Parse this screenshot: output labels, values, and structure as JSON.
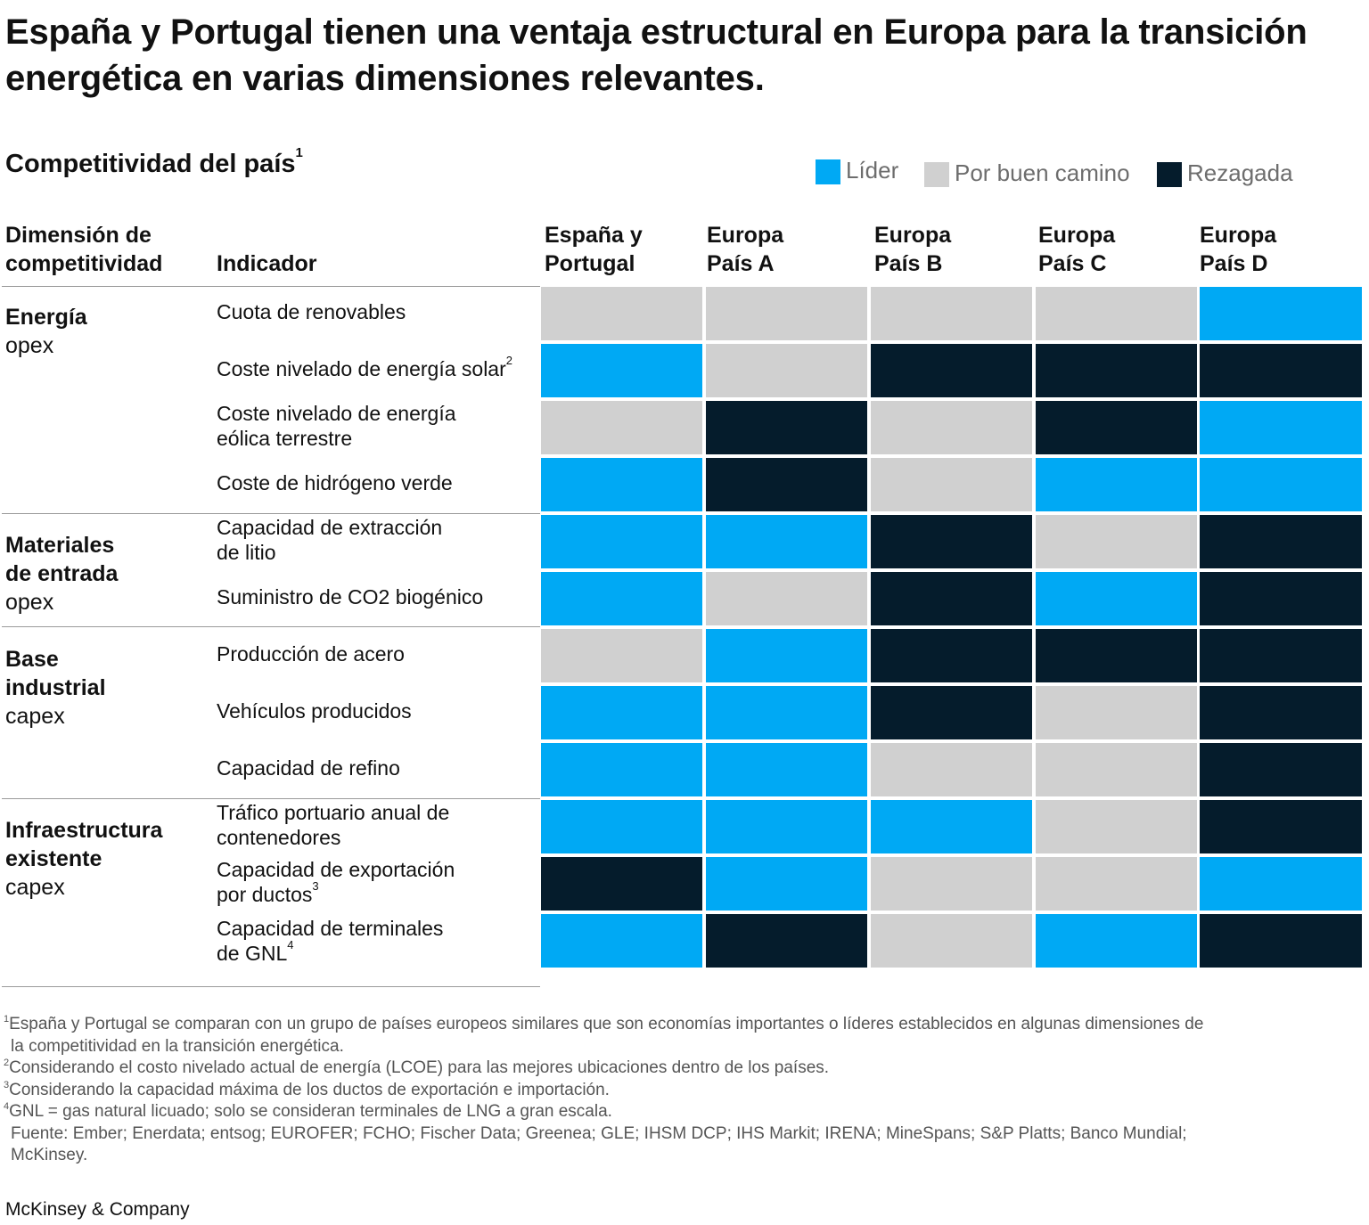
{
  "title": "España y Portugal tienen una ventaja estructural en Europa para la transición energética en varias dimensiones relevantes.",
  "subtitle": "Competitividad del país",
  "subtitle_sup": "1",
  "legend": [
    {
      "label": "Líder",
      "color": "#00a9f4"
    },
    {
      "label": "Por buen camino",
      "color": "#d0d0d0"
    },
    {
      "label": "Rezagada",
      "color": "#051c2c"
    }
  ],
  "headers": {
    "dimension_line1": "Dimensión de",
    "dimension_line2": "competitividad",
    "indicator": "Indicador"
  },
  "columns": [
    {
      "line1": "España y",
      "line2": "Portugal"
    },
    {
      "line1": "Europa",
      "line2": "País A"
    },
    {
      "line1": "Europa",
      "line2": "País B"
    },
    {
      "line1": "Europa",
      "line2": "País C"
    },
    {
      "line1": "Europa",
      "line2": "País D"
    }
  ],
  "groups": [
    {
      "name_lines": [
        "Energía"
      ],
      "type": "opex"
    },
    {
      "name_lines": [
        "Materiales",
        "de entrada"
      ],
      "type": "opex"
    },
    {
      "name_lines": [
        "Base",
        "industrial"
      ],
      "type": "capex"
    },
    {
      "name_lines": [
        "Infraestructura",
        "existente"
      ],
      "type": "capex"
    }
  ],
  "chart_data": {
    "type": "table",
    "title": "Competitividad del país",
    "categories": [
      "Líder",
      "Por buen camino",
      "Rezagada"
    ],
    "columns": [
      "España y Portugal",
      "Europa País A",
      "Europa País B",
      "Europa País C",
      "Europa País D"
    ],
    "rows": [
      {
        "group": 0,
        "indicator_lines": [
          "Cuota de renovables"
        ],
        "sup": "",
        "values": [
          "Por buen camino",
          "Por buen camino",
          "Por buen camino",
          "Por buen camino",
          "Líder"
        ]
      },
      {
        "group": 0,
        "indicator_lines": [
          "Coste nivelado de energía solar"
        ],
        "sup": "2",
        "values": [
          "Líder",
          "Por buen camino",
          "Rezagada",
          "Rezagada",
          "Rezagada"
        ]
      },
      {
        "group": 0,
        "indicator_lines": [
          "Coste nivelado de energía",
          "eólica terrestre"
        ],
        "sup": "",
        "values": [
          "Por buen camino",
          "Rezagada",
          "Por buen camino",
          "Rezagada",
          "Líder"
        ]
      },
      {
        "group": 0,
        "indicator_lines": [
          "Coste de hidrógeno verde"
        ],
        "sup": "",
        "values": [
          "Líder",
          "Rezagada",
          "Por buen camino",
          "Líder",
          "Líder"
        ]
      },
      {
        "group": 1,
        "indicator_lines": [
          "Capacidad de extracción",
          "de litio"
        ],
        "sup": "",
        "values": [
          "Líder",
          "Líder",
          "Rezagada",
          "Por buen camino",
          "Rezagada"
        ]
      },
      {
        "group": 1,
        "indicator_lines": [
          "Suministro de CO2 biogénico"
        ],
        "sup": "",
        "values": [
          "Líder",
          "Por buen camino",
          "Rezagada",
          "Líder",
          "Rezagada"
        ]
      },
      {
        "group": 2,
        "indicator_lines": [
          "Producción de acero"
        ],
        "sup": "",
        "values": [
          "Por buen camino",
          "Líder",
          "Rezagada",
          "Rezagada",
          "Rezagada"
        ]
      },
      {
        "group": 2,
        "indicator_lines": [
          "Vehículos producidos"
        ],
        "sup": "",
        "values": [
          "Líder",
          "Líder",
          "Rezagada",
          "Por buen camino",
          "Rezagada"
        ]
      },
      {
        "group": 2,
        "indicator_lines": [
          "Capacidad de refino"
        ],
        "sup": "",
        "values": [
          "Líder",
          "Líder",
          "Por buen camino",
          "Por buen camino",
          "Rezagada"
        ]
      },
      {
        "group": 3,
        "indicator_lines": [
          "Tráfico portuario anual de",
          "contenedores"
        ],
        "sup": "",
        "values": [
          "Líder",
          "Líder",
          "Líder",
          "Por buen camino",
          "Rezagada"
        ]
      },
      {
        "group": 3,
        "indicator_lines": [
          "Capacidad de exportación",
          "por ductos"
        ],
        "sup": "3",
        "values": [
          "Rezagada",
          "Líder",
          "Por buen camino",
          "Por buen camino",
          "Líder"
        ]
      },
      {
        "group": 3,
        "indicator_lines": [
          "Capacidad de terminales",
          "de GNL"
        ],
        "sup": "4",
        "values": [
          "Líder",
          "Rezagada",
          "Por buen camino",
          "Líder",
          "Rezagada"
        ]
      }
    ]
  },
  "footnotes": [
    {
      "sup": "1",
      "lines": [
        "España y Portugal se comparan con un grupo de países europeos similares que son economías importantes o líderes establecidos en algunas dimensiones de",
        "la competitividad en la transición energética."
      ]
    },
    {
      "sup": "2",
      "lines": [
        "Considerando el costo nivelado actual de energía (LCOE) para las mejores ubicaciones dentro de los países."
      ]
    },
    {
      "sup": "3",
      "lines": [
        "Considerando la capacidad máxima de los ductos de exportación e importación."
      ]
    },
    {
      "sup": "4",
      "lines": [
        "GNL = gas natural licuado; solo se consideran terminales de LNG a gran escala."
      ]
    },
    {
      "sup": "",
      "lines": [
        "Fuente: Ember; Enerdata; entsog; EUROFER; FCHO; Fischer Data; Greenea; GLE; IHSM DCP; IHS Markit; IRENA; MineSpans; S&P Platts; Banco Mundial;",
        "McKinsey."
      ]
    }
  ],
  "brand": "McKinsey & Company"
}
